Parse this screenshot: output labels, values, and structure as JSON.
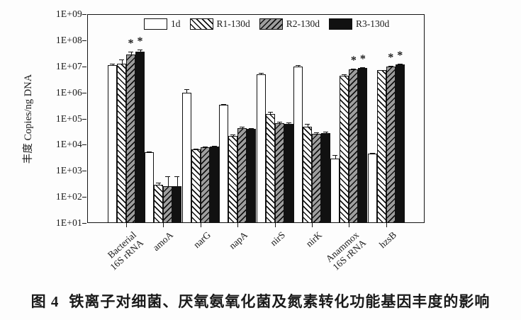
{
  "caption": {
    "label": "图 4",
    "text": "铁离子对细菌、厌氧氨氧化菌及氮素转化功能基因丰度的影响"
  },
  "chart_data": {
    "type": "bar",
    "scale": "log",
    "title": "",
    "xlabel": "",
    "ylabel": "丰度 Copies/ng DNA",
    "ylim": [
      10,
      1000000000
    ],
    "y_ticks": [
      "1E+09",
      "1E+08",
      "1E+07",
      "1E+06",
      "1E+05",
      "1E+04",
      "1E+03",
      "1E+02",
      "1E+01"
    ],
    "grid": false,
    "legend_position": "top-inside",
    "significance_marker": "*",
    "categories": [
      "Bacterial 16S rRNA",
      "amoA",
      "narG",
      "napA",
      "nirS",
      "nirK",
      "Anammox 16S rRNA",
      "hzsB"
    ],
    "category_lines": [
      [
        "Bacterial",
        "16S rRNA"
      ],
      [
        "amoA"
      ],
      [
        "narG"
      ],
      [
        "napA"
      ],
      [
        "nirS"
      ],
      [
        "nirK"
      ],
      [
        "Anammox",
        "16S rRNA"
      ],
      [
        "hzsB"
      ]
    ],
    "series": [
      {
        "name": "1d",
        "pattern": "none",
        "values": [
          11000000.0,
          5000.0,
          1000000.0,
          330000.0,
          5000000.0,
          10000000.0,
          3000.0,
          4500.0
        ],
        "err_hi": [
          12500000.0,
          5400.0,
          1300000.0,
          360000.0,
          5600000.0,
          11000000.0,
          4000.0,
          4700.0
        ],
        "stars": [
          0,
          0,
          0,
          0,
          0,
          0,
          0,
          0
        ]
      },
      {
        "name": "R1-130d",
        "pattern": "diag-forward",
        "values": [
          13000000.0,
          300.0,
          6500.0,
          21000.0,
          150000.0,
          50000.0,
          4500000.0,
          7000000.0
        ],
        "err_hi": [
          18000000.0,
          360.0,
          7000.0,
          24000.0,
          180000.0,
          62000.0,
          5000000.0,
          7400000.0
        ],
        "stars": [
          0,
          0,
          0,
          0,
          0,
          0,
          0,
          0
        ]
      },
      {
        "name": "R2-130d",
        "pattern": "diag-back",
        "values": [
          28000000.0,
          250.0,
          8000.0,
          43000.0,
          65000.0,
          26000.0,
          7500000.0,
          10000000.0
        ],
        "err_hi": [
          36000000.0,
          600.0,
          8600.0,
          48000.0,
          74000.0,
          30000.0,
          8400000.0,
          10600000.0
        ],
        "stars": [
          1,
          0,
          0,
          0,
          0,
          0,
          1,
          1
        ]
      },
      {
        "name": "R3-130d",
        "pattern": "solid",
        "values": [
          36000000.0,
          250.0,
          8500.0,
          40000.0,
          62000.0,
          27000.0,
          8500000.0,
          12000000.0
        ],
        "err_hi": [
          45000000.0,
          600.0,
          9000.0,
          44000.0,
          70000.0,
          31000.0,
          9200000.0,
          12600000.0
        ],
        "stars": [
          1,
          0,
          0,
          0,
          0,
          0,
          1,
          1
        ]
      }
    ]
  },
  "colors": {
    "axis": "#151515",
    "bar_border": "#111111",
    "r2_fill": "#9e9e9e",
    "r3_fill": "#111111"
  }
}
